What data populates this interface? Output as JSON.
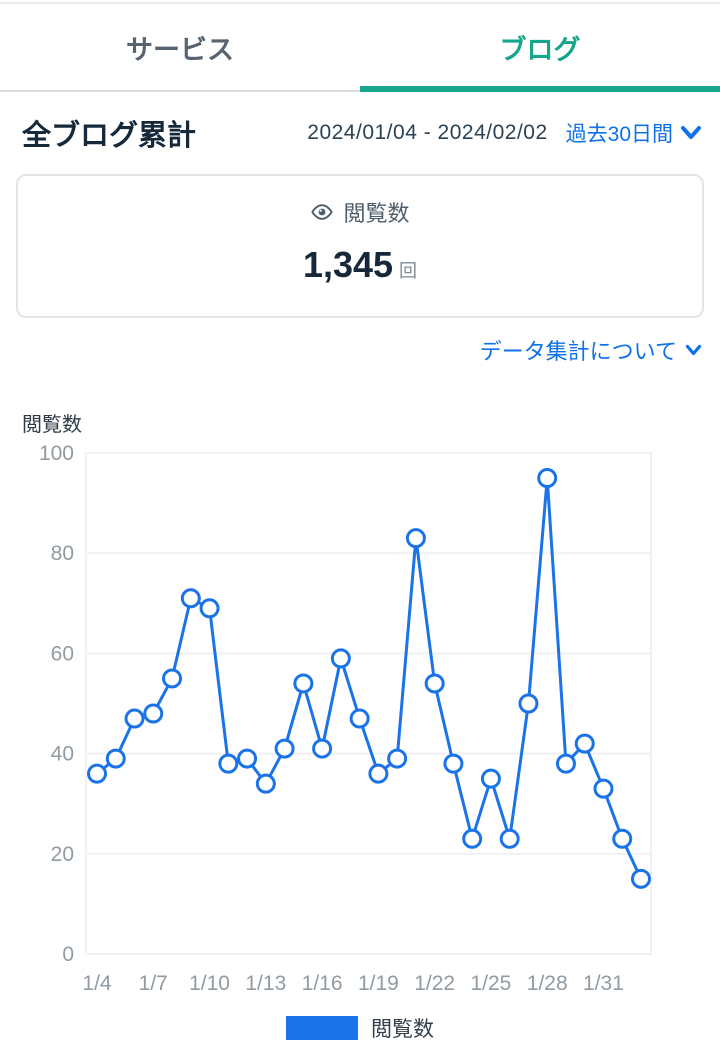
{
  "tabs": {
    "service": "サービス",
    "blog": "ブログ"
  },
  "header": {
    "title": "全ブログ累計",
    "date_range": "2024/01/04 - 2024/02/02",
    "period_selector": "過去30日間"
  },
  "summary_card": {
    "metric_label": "閲覧数",
    "value": "1,345",
    "unit": "回"
  },
  "note_link_label": "データ集計について",
  "icons": {
    "metric": "eye-icon",
    "period_expand": "chevron-down-icon",
    "note_expand": "chevron-down-icon"
  },
  "colors": {
    "accent_teal": "#17a58c",
    "link_blue": "#0e71e8",
    "line_blue": "#1a73e8",
    "grid": "#f1f1f3",
    "axis_label": "#919ba3"
  },
  "chart_data": {
    "type": "line",
    "title": "閲覧数",
    "ylabel": "閲覧数",
    "legend": [
      "閲覧数"
    ],
    "legend_position": "bottom",
    "grid": true,
    "ylim": [
      0,
      100
    ],
    "yticks": [
      0,
      20,
      40,
      60,
      80,
      100
    ],
    "x": [
      "1/4",
      "1/5",
      "1/6",
      "1/7",
      "1/8",
      "1/9",
      "1/10",
      "1/11",
      "1/12",
      "1/13",
      "1/14",
      "1/15",
      "1/16",
      "1/17",
      "1/18",
      "1/19",
      "1/20",
      "1/21",
      "1/22",
      "1/23",
      "1/24",
      "1/25",
      "1/26",
      "1/27",
      "1/28",
      "1/29",
      "1/30",
      "1/31",
      "2/1",
      "2/2"
    ],
    "values": [
      36,
      39,
      47,
      48,
      55,
      71,
      69,
      38,
      39,
      34,
      41,
      54,
      41,
      59,
      47,
      36,
      39,
      83,
      54,
      38,
      23,
      35,
      23,
      50,
      95,
      38,
      42,
      33,
      23,
      15
    ],
    "xtick_indices": [
      0,
      3,
      6,
      9,
      12,
      15,
      18,
      21,
      24,
      27
    ],
    "line_color": "#1a73e8",
    "marker": "open-circle"
  }
}
